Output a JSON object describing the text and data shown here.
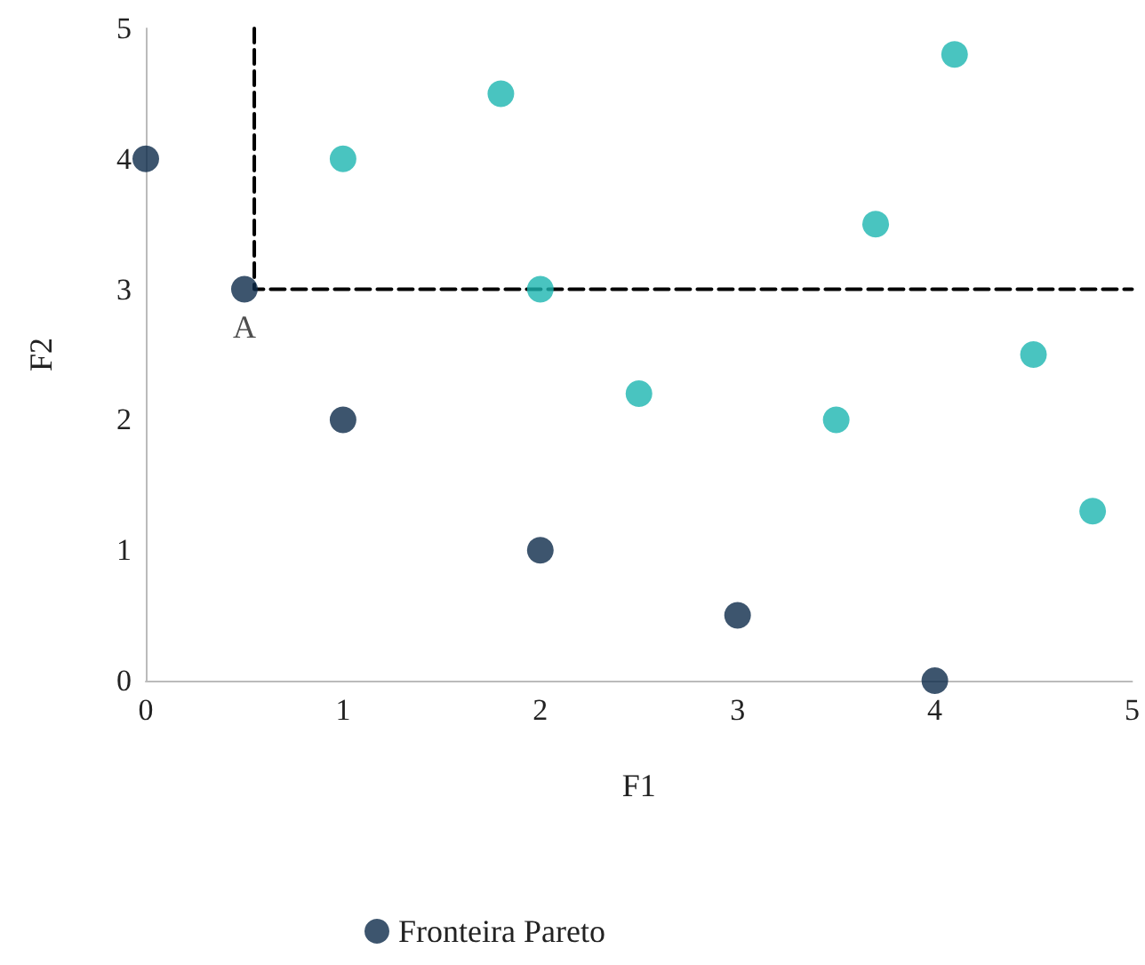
{
  "chart_data": {
    "type": "scatter",
    "xlabel": "F1",
    "ylabel": "F2",
    "xlim": [
      0,
      5
    ],
    "xticks": [
      0,
      1,
      2,
      3,
      4,
      5
    ],
    "ylim": [
      0,
      5
    ],
    "yticks": [
      0,
      1,
      2,
      3,
      4,
      5
    ],
    "grid": false,
    "legend": "bottom",
    "marker": "circle",
    "series": [
      {
        "name": "Fronteira Pareto",
        "color": "#0d2a4a",
        "x": [
          0,
          0.5,
          1,
          2,
          3,
          4
        ],
        "values": [
          4,
          3,
          2,
          1,
          0.5,
          0
        ]
      },
      {
        "color": "#1cb5b0",
        "x": [
          1,
          1.8,
          2,
          2.5,
          3.5,
          3.7,
          4.1,
          4.5,
          4.8
        ],
        "values": [
          4,
          4.5,
          3,
          2.2,
          2,
          3.5,
          4.8,
          2.5,
          1.3
        ]
      },
      {
        "type": "line",
        "color": "#000000",
        "line_style": "dashed",
        "marker": "none",
        "x": [
          0.55,
          0.55,
          5
        ],
        "values": [
          5,
          3,
          3
        ]
      }
    ],
    "annotations": [
      {
        "text": "A",
        "x": 0.5,
        "y": 3
      }
    ]
  }
}
